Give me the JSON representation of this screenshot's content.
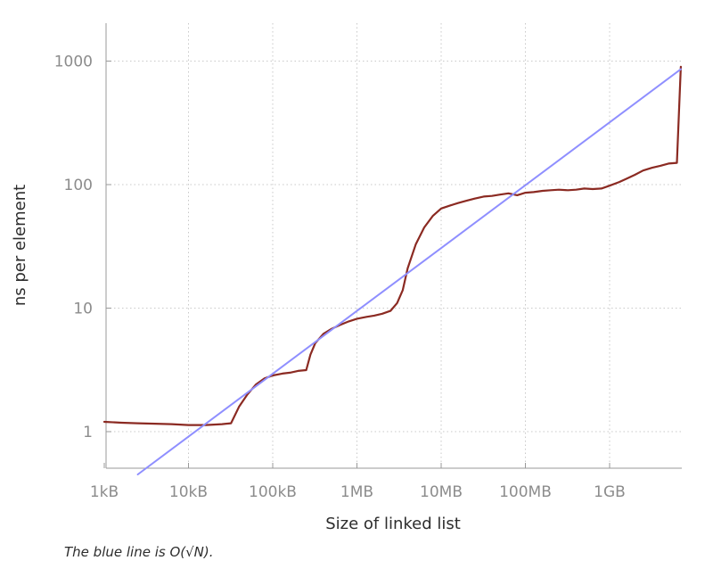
{
  "chart_data": {
    "type": "line",
    "xlabel": "Size of linked list",
    "ylabel": "ns per element",
    "x_scale": "log",
    "y_scale": "log",
    "x_ticks": [
      {
        "label": "1kB",
        "value": 1000
      },
      {
        "label": "10kB",
        "value": 10000
      },
      {
        "label": "100kB",
        "value": 100000
      },
      {
        "label": "1MB",
        "value": 1000000
      },
      {
        "label": "10MB",
        "value": 10000000
      },
      {
        "label": "100MB",
        "value": 100000000
      },
      {
        "label": "1GB",
        "value": 1000000000
      }
    ],
    "y_ticks": [
      {
        "label": "1",
        "value": 1
      },
      {
        "label": "10",
        "value": 10
      },
      {
        "label": "100",
        "value": 100
      },
      {
        "label": "1000",
        "value": 1000
      }
    ],
    "xlim": [
      1000,
      7000000000
    ],
    "ylim": [
      0.45,
      2200
    ],
    "grid": true,
    "series": [
      {
        "color": "#8b2a22",
        "points": [
          [
            1000,
            1.2
          ],
          [
            1600,
            1.18
          ],
          [
            2500,
            1.17
          ],
          [
            4000,
            1.16
          ],
          [
            6300,
            1.15
          ],
          [
            10000,
            1.13
          ],
          [
            16000,
            1.13
          ],
          [
            25000,
            1.15
          ],
          [
            32000,
            1.17
          ],
          [
            40000,
            1.6
          ],
          [
            50000,
            2.0
          ],
          [
            63000,
            2.4
          ],
          [
            80000,
            2.7
          ],
          [
            100000,
            2.85
          ],
          [
            130000,
            2.95
          ],
          [
            160000,
            3.0
          ],
          [
            200000,
            3.1
          ],
          [
            250000,
            3.15
          ],
          [
            280000,
            4.2
          ],
          [
            320000,
            5.2
          ],
          [
            400000,
            6.2
          ],
          [
            500000,
            6.8
          ],
          [
            630000,
            7.3
          ],
          [
            800000,
            7.8
          ],
          [
            1000000,
            8.2
          ],
          [
            1300000,
            8.5
          ],
          [
            1600000,
            8.7
          ],
          [
            2000000,
            9.0
          ],
          [
            2500000,
            9.5
          ],
          [
            3000000,
            11
          ],
          [
            3500000,
            14
          ],
          [
            4000000,
            21
          ],
          [
            5000000,
            33
          ],
          [
            6300000,
            45
          ],
          [
            8000000,
            56
          ],
          [
            10000000,
            64
          ],
          [
            13000000,
            68
          ],
          [
            16000000,
            71
          ],
          [
            20000000,
            74
          ],
          [
            25000000,
            77
          ],
          [
            32000000,
            80
          ],
          [
            40000000,
            81
          ],
          [
            50000000,
            83
          ],
          [
            63000000,
            85
          ],
          [
            80000000,
            82
          ],
          [
            100000000,
            86
          ],
          [
            125000000,
            87
          ],
          [
            160000000,
            89
          ],
          [
            200000000,
            90
          ],
          [
            250000000,
            91
          ],
          [
            320000000,
            90
          ],
          [
            400000000,
            91
          ],
          [
            500000000,
            93
          ],
          [
            630000000,
            92
          ],
          [
            800000000,
            93
          ],
          [
            1000000000,
            98
          ],
          [
            1300000000,
            105
          ],
          [
            1600000000,
            112
          ],
          [
            2000000000,
            120
          ],
          [
            2500000000,
            130
          ],
          [
            3200000000,
            137
          ],
          [
            4000000000,
            142
          ],
          [
            5000000000,
            148
          ],
          [
            6300000000,
            150
          ],
          [
            7000000000,
            900
          ]
        ]
      },
      {
        "color": "#8f8fff",
        "points": [
          [
            2500,
            0.45
          ],
          [
            7000000000,
            860
          ]
        ]
      }
    ]
  },
  "caption": "The blue line is O(√N)."
}
